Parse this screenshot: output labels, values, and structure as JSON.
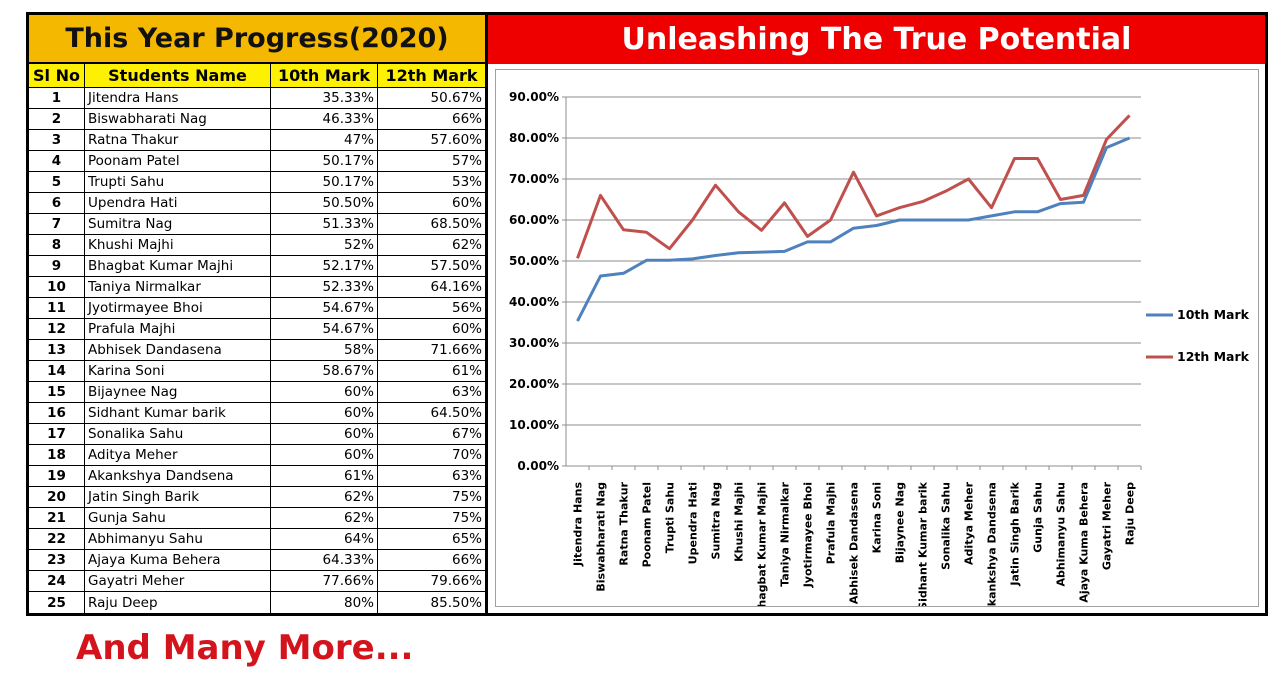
{
  "table": {
    "title": "This Year Progress(2020)",
    "headers": {
      "sl": "Sl No",
      "name": "Students Name",
      "tenth": "10th Mark",
      "twelfth": "12th Mark"
    },
    "rows": [
      {
        "sl": "1",
        "name": "Jitendra Hans",
        "tenth": "35.33%",
        "twelfth": "50.67%"
      },
      {
        "sl": "2",
        "name": "Biswabharati Nag",
        "tenth": "46.33%",
        "twelfth": "66%"
      },
      {
        "sl": "3",
        "name": "Ratna Thakur",
        "tenth": "47%",
        "twelfth": "57.60%"
      },
      {
        "sl": "4",
        "name": "Poonam Patel",
        "tenth": "50.17%",
        "twelfth": "57%"
      },
      {
        "sl": "5",
        "name": "Trupti Sahu",
        "tenth": "50.17%",
        "twelfth": "53%"
      },
      {
        "sl": "6",
        "name": "Upendra Hati",
        "tenth": "50.50%",
        "twelfth": "60%"
      },
      {
        "sl": "7",
        "name": "Sumitra Nag",
        "tenth": "51.33%",
        "twelfth": "68.50%"
      },
      {
        "sl": "8",
        "name": "Khushi Majhi",
        "tenth": "52%",
        "twelfth": "62%"
      },
      {
        "sl": "9",
        "name": "Bhagbat Kumar Majhi",
        "tenth": "52.17%",
        "twelfth": "57.50%"
      },
      {
        "sl": "10",
        "name": "Taniya Nirmalkar",
        "tenth": "52.33%",
        "twelfth": "64.16%"
      },
      {
        "sl": "11",
        "name": "Jyotirmayee Bhoi",
        "tenth": "54.67%",
        "twelfth": "56%"
      },
      {
        "sl": "12",
        "name": "Prafula Majhi",
        "tenth": "54.67%",
        "twelfth": "60%"
      },
      {
        "sl": "13",
        "name": "Abhisek Dandasena",
        "tenth": "58%",
        "twelfth": "71.66%"
      },
      {
        "sl": "14",
        "name": "Karina Soni",
        "tenth": "58.67%",
        "twelfth": "61%"
      },
      {
        "sl": "15",
        "name": "Bijaynee Nag",
        "tenth": "60%",
        "twelfth": "63%"
      },
      {
        "sl": "16",
        "name": "Sidhant Kumar barik",
        "tenth": "60%",
        "twelfth": "64.50%"
      },
      {
        "sl": "17",
        "name": "Sonalika Sahu",
        "tenth": "60%",
        "twelfth": "67%"
      },
      {
        "sl": "18",
        "name": "Aditya Meher",
        "tenth": "60%",
        "twelfth": "70%"
      },
      {
        "sl": "19",
        "name": "Akankshya Dandsena",
        "tenth": "61%",
        "twelfth": "63%"
      },
      {
        "sl": "20",
        "name": "Jatin Singh Barik",
        "tenth": "62%",
        "twelfth": "75%"
      },
      {
        "sl": "21",
        "name": "Gunja Sahu",
        "tenth": "62%",
        "twelfth": "75%"
      },
      {
        "sl": "22",
        "name": "Abhimanyu Sahu",
        "tenth": "64%",
        "twelfth": "65%"
      },
      {
        "sl": "23",
        "name": "Ajaya Kuma Behera",
        "tenth": "64.33%",
        "twelfth": "66%"
      },
      {
        "sl": "24",
        "name": "Gayatri Meher",
        "tenth": "77.66%",
        "twelfth": "79.66%"
      },
      {
        "sl": "25",
        "name": "Raju Deep",
        "tenth": "80%",
        "twelfth": "85.50%"
      }
    ]
  },
  "chart_title": "Unleashing The True Potential",
  "footer": "And Many More...",
  "chart_data": {
    "type": "line",
    "categories": [
      "Jitendra Hans",
      "Biswabharati Nag",
      "Ratna Thakur",
      "Poonam Patel",
      "Trupti Sahu",
      "Upendra Hati",
      "Sumitra Nag",
      "Khushi Majhi",
      "Bhagbat Kumar Majhi",
      "Taniya Nirmalkar",
      "Jyotirmayee Bhoi",
      "Prafula Majhi",
      "Abhisek Dandasena",
      "Karina Soni",
      "Bijaynee Nag",
      "Sidhant Kumar barik",
      "Sonalika Sahu",
      "Aditya Meher",
      "Akankshya Dandsena",
      "Jatin Singh Barik",
      "Gunja Sahu",
      "Abhimanyu Sahu",
      "Ajaya Kuma Behera",
      "Gayatri Meher",
      "Raju Deep"
    ],
    "series": [
      {
        "name": "10th Mark",
        "color": "#4f81bd",
        "values": [
          35.33,
          46.33,
          47,
          50.17,
          50.17,
          50.5,
          51.33,
          52,
          52.17,
          52.33,
          54.67,
          54.67,
          58,
          58.67,
          60,
          60,
          60,
          60,
          61,
          62,
          62,
          64,
          64.33,
          77.66,
          80
        ]
      },
      {
        "name": "12th Mark",
        "color": "#c0504d",
        "values": [
          50.67,
          66,
          57.6,
          57,
          53,
          60,
          68.5,
          62,
          57.5,
          64.16,
          56,
          60,
          71.66,
          61,
          63,
          64.5,
          67,
          70,
          63,
          75,
          75,
          65,
          66,
          79.66,
          85.5
        ]
      }
    ],
    "ylim": [
      0,
      90
    ],
    "yticks": [
      "0.00%",
      "10.00%",
      "20.00%",
      "30.00%",
      "40.00%",
      "50.00%",
      "60.00%",
      "70.00%",
      "80.00%",
      "90.00%"
    ],
    "grid": true,
    "legend": "right"
  }
}
